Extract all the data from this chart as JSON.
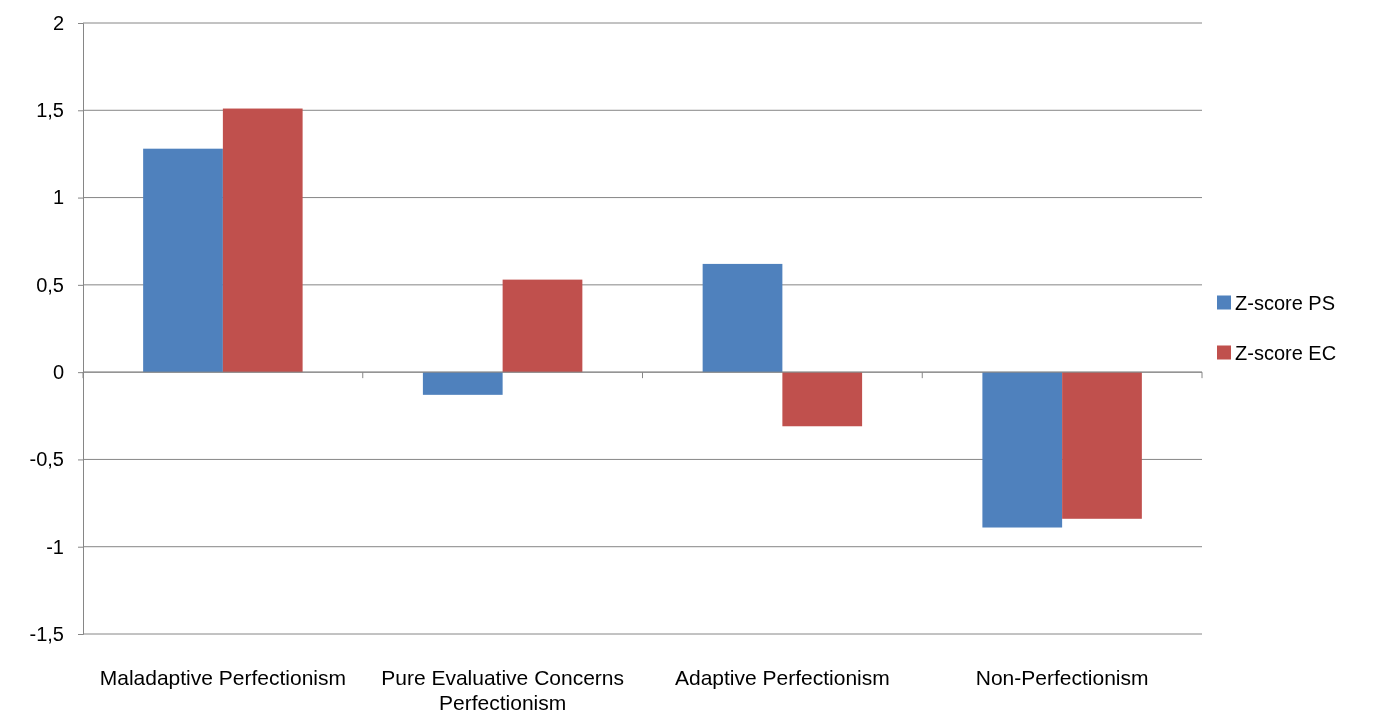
{
  "chart_data": {
    "type": "bar",
    "categories": [
      "Maladaptive Perfectionism",
      "Pure Evaluative Concerns Perfectionism",
      "Adaptive Perfectionism",
      "Non-Perfectionism"
    ],
    "series": [
      {
        "name": "Z-score PS",
        "color": "#4f81bd",
        "values": [
          1.28,
          -0.13,
          0.62,
          -0.89
        ]
      },
      {
        "name": "Z-score EC",
        "color": "#c0504d",
        "values": [
          1.51,
          0.53,
          -0.31,
          -0.84
        ]
      }
    ],
    "ylim": [
      -1.5,
      2
    ],
    "yticks": [
      {
        "value": -1.5,
        "label": "-1,5"
      },
      {
        "value": -1,
        "label": "-1"
      },
      {
        "value": -0.5,
        "label": "-0,5"
      },
      0,
      {
        "value": 0.5,
        "label": "0,5"
      },
      1,
      {
        "value": 1.5,
        "label": "1,5"
      },
      2
    ],
    "grid": "y",
    "legend": "right"
  }
}
